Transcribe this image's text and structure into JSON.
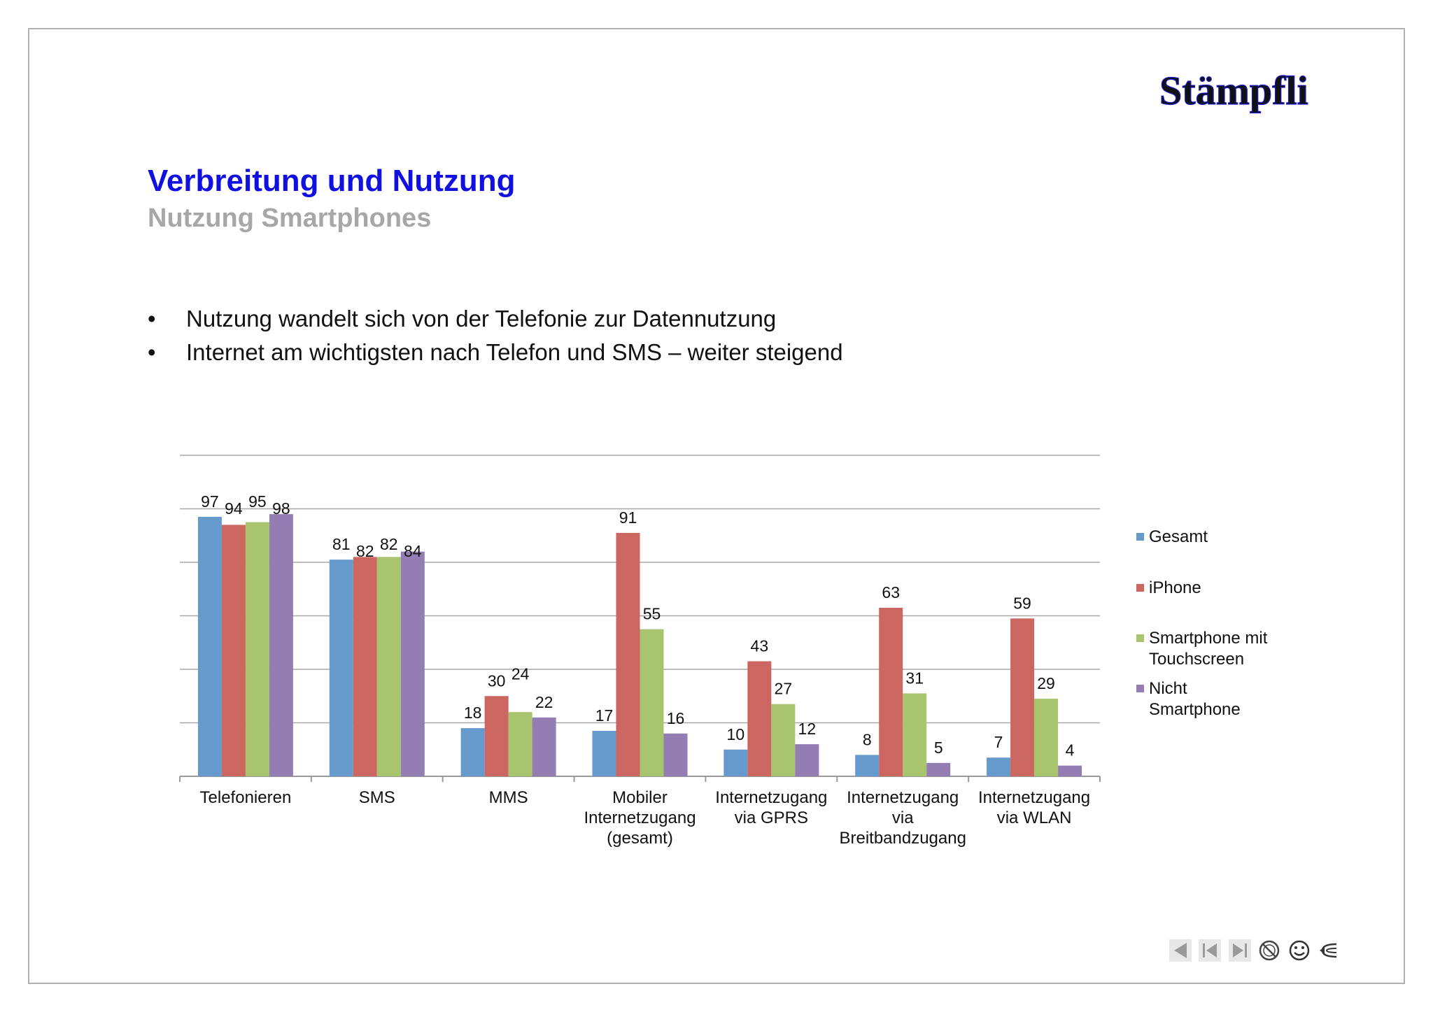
{
  "slide": {
    "logo_text": "Stämpfli",
    "title": "Verbreitung und Nutzung",
    "subtitle": "Nutzung Smartphones",
    "bullets": [
      "Nutzung wandelt sich von der Telefonie zur Datennutzung",
      "Internet am wichtigsten nach Telefon und SMS – weiter steigend"
    ],
    "bullet_char": "•"
  },
  "chart_data": {
    "type": "bar",
    "categories": [
      [
        "Telefonieren"
      ],
      [
        "SMS"
      ],
      [
        "MMS"
      ],
      [
        "Mobiler",
        "Internetzugang",
        "(gesamt)"
      ],
      [
        "Internetzugang",
        "via GPRS"
      ],
      [
        "Internetzugang",
        "via",
        "Breitbandzugang"
      ],
      [
        "Internetzugang",
        "via WLAN"
      ]
    ],
    "series": [
      {
        "name": "Gesamt",
        "color": "#6699cc",
        "values": [
          97,
          81,
          18,
          17,
          10,
          8,
          7
        ]
      },
      {
        "name": "iPhone",
        "color": "#cc6660",
        "values": [
          94,
          82,
          30,
          91,
          43,
          63,
          59
        ]
      },
      {
        "name": "Smartphone mit Touchscreen",
        "legend_lines": [
          "Smartphone mit",
          "Touchscreen"
        ],
        "color": "#a9c46e",
        "values": [
          95,
          82,
          24,
          55,
          27,
          31,
          29
        ]
      },
      {
        "name": "Nicht Smartphone",
        "legend_lines": [
          "Nicht",
          "Smartphone"
        ],
        "color": "#937db3",
        "values": [
          98,
          84,
          22,
          16,
          12,
          5,
          4
        ]
      }
    ],
    "ylim": [
      0,
      120
    ],
    "gridlines": [
      20,
      40,
      60,
      80,
      100,
      120
    ],
    "grid": true,
    "y_tick_labels_shown": false,
    "data_labels": true,
    "legend": "right",
    "title": "",
    "xlabel": "",
    "ylabel": ""
  },
  "nav": {
    "icons": [
      "prev-icon",
      "first-icon",
      "last-icon",
      "no-entry-icon",
      "smiley-icon",
      "return-icon"
    ]
  }
}
